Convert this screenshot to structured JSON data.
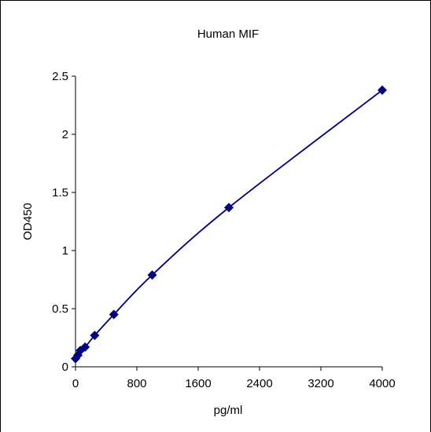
{
  "chart_data": {
    "type": "scatter",
    "title": "Human MIF",
    "xlabel": "pg/ml",
    "ylabel": "OD450",
    "xlim": [
      0,
      4000
    ],
    "ylim": [
      0,
      2.5
    ],
    "xticks": [
      0,
      800,
      1600,
      2400,
      3200,
      4000
    ],
    "xtick_labels": [
      "0",
      "800",
      "1600",
      "2400",
      "3200",
      "4000"
    ],
    "yticks": [
      0,
      0.5,
      1,
      1.5,
      2,
      2.5
    ],
    "ytick_labels": [
      "0",
      "0.5",
      "1",
      "1.5",
      "2",
      "2.5"
    ],
    "grid": false,
    "legend": false,
    "trendline": "smooth curve through points",
    "series": [
      {
        "x": [
          0,
          31.25,
          62.5,
          125,
          250,
          500,
          1000,
          2000,
          4000
        ],
        "y": [
          0.07,
          0.1,
          0.14,
          0.17,
          0.27,
          0.45,
          0.79,
          1.37,
          2.38
        ],
        "color": "#000080",
        "marker": "diamond"
      }
    ]
  }
}
